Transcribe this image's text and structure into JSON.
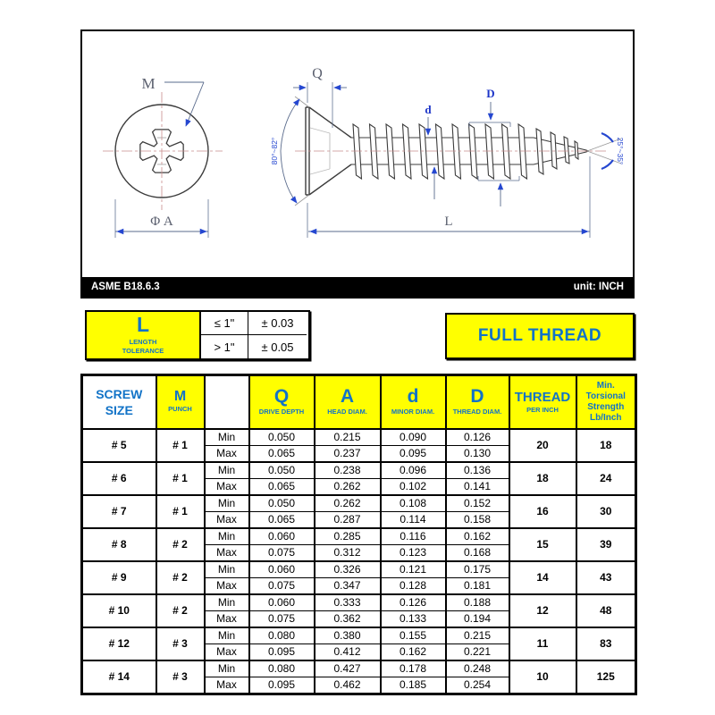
{
  "page": {
    "standard": "ASME B18.6.3",
    "unit_label": "unit: INCH"
  },
  "drawing": {
    "labels": {
      "punch": "M",
      "head_diameter": "Φ A",
      "drive_depth": "Q",
      "minor_diameter": "d",
      "thread_diameter": "D",
      "length": "L",
      "head_angle": "80°~82°",
      "point_angle": "25°~35°"
    }
  },
  "tolerance_box": {
    "symbol": "L",
    "caption": [
      "LENGTH",
      "TOLERANCE"
    ],
    "rows": [
      {
        "condition": "≤ 1\"",
        "value": "± 0.03"
      },
      {
        "condition": "> 1\"",
        "value": "± 0.05"
      }
    ]
  },
  "full_thread": {
    "label": "FULL THREAD"
  },
  "spec_table": {
    "headers": {
      "screw_size": [
        "SCREW",
        "SIZE"
      ],
      "punch": {
        "symbol": "M",
        "caption": "PUNCH"
      },
      "drive_depth": {
        "symbol": "Q",
        "caption": "DRIVE DEPTH"
      },
      "head_diam": {
        "symbol": "A",
        "caption": "HEAD DIAM."
      },
      "minor_diam": {
        "symbol": "d",
        "caption": "MINOR DIAM."
      },
      "thread_diam": {
        "symbol": "D",
        "caption": "THREAD DIAM."
      },
      "thread_per_inch": [
        "THREAD",
        "PER INCH"
      ],
      "torsional_strength": [
        "Min.",
        "Torsional",
        "Strength",
        "Lb/Inch"
      ]
    },
    "row_labels": {
      "min": "Min",
      "max": "Max"
    },
    "rows": [
      {
        "size": "# 5",
        "punch": "# 1",
        "min": [
          "0.050",
          "0.215",
          "0.090",
          "0.126"
        ],
        "max": [
          "0.065",
          "0.237",
          "0.095",
          "0.130"
        ],
        "tpi": "20",
        "strength": "18"
      },
      {
        "size": "# 6",
        "punch": "# 1",
        "min": [
          "0.050",
          "0.238",
          "0.096",
          "0.136"
        ],
        "max": [
          "0.065",
          "0.262",
          "0.102",
          "0.141"
        ],
        "tpi": "18",
        "strength": "24"
      },
      {
        "size": "# 7",
        "punch": "# 1",
        "min": [
          "0.050",
          "0.262",
          "0.108",
          "0.152"
        ],
        "max": [
          "0.065",
          "0.287",
          "0.114",
          "0.158"
        ],
        "tpi": "16",
        "strength": "30"
      },
      {
        "size": "# 8",
        "punch": "# 2",
        "min": [
          "0.060",
          "0.285",
          "0.116",
          "0.162"
        ],
        "max": [
          "0.075",
          "0.312",
          "0.123",
          "0.168"
        ],
        "tpi": "15",
        "strength": "39"
      },
      {
        "size": "# 9",
        "punch": "# 2",
        "min": [
          "0.060",
          "0.326",
          "0.121",
          "0.175"
        ],
        "max": [
          "0.075",
          "0.347",
          "0.128",
          "0.181"
        ],
        "tpi": "14",
        "strength": "43"
      },
      {
        "size": "# 10",
        "punch": "# 2",
        "min": [
          "0.060",
          "0.333",
          "0.126",
          "0.188"
        ],
        "max": [
          "0.075",
          "0.362",
          "0.133",
          "0.194"
        ],
        "tpi": "12",
        "strength": "48"
      },
      {
        "size": "# 12",
        "punch": "# 3",
        "min": [
          "0.080",
          "0.380",
          "0.155",
          "0.215"
        ],
        "max": [
          "0.095",
          "0.412",
          "0.162",
          "0.221"
        ],
        "tpi": "11",
        "strength": "83"
      },
      {
        "size": "# 14",
        "punch": "# 3",
        "min": [
          "0.080",
          "0.427",
          "0.178",
          "0.248"
        ],
        "max": [
          "0.095",
          "0.462",
          "0.185",
          "0.254"
        ],
        "tpi": "10",
        "strength": "125"
      }
    ]
  },
  "colors": {
    "accent_yellow": "#FFFF00",
    "accent_blue": "#1273C7",
    "dimension_blue": "#2547D0",
    "centerline_red": "#C98C8C",
    "bar_black": "#000000"
  }
}
